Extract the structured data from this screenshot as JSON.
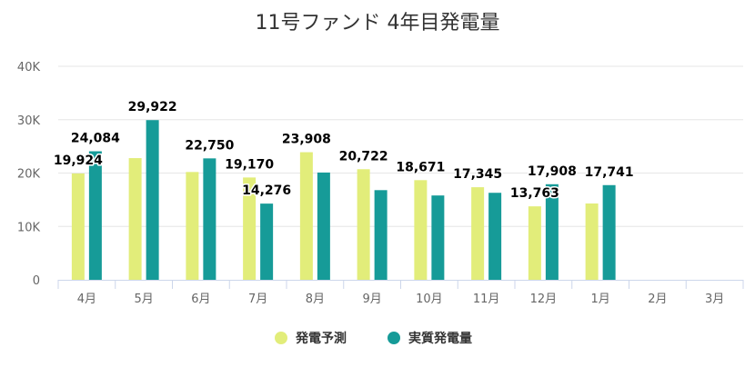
{
  "chart_data": {
    "type": "bar",
    "title": "11号ファンド 4年目発電量",
    "categories": [
      "4月",
      "5月",
      "6月",
      "7月",
      "8月",
      "9月",
      "10月",
      "11月",
      "12月",
      "1月",
      "2月",
      "3月"
    ],
    "series": [
      {
        "name": "発電予測",
        "color": "#e2ed7a",
        "values": [
          19924,
          22800,
          20200,
          19170,
          23908,
          20722,
          18671,
          17345,
          13763,
          14300,
          null,
          null
        ],
        "labels": [
          "19,924",
          "",
          "",
          "19,170",
          "23,908",
          "20,722",
          "18,671",
          "17,345",
          "13,763",
          "",
          "",
          ""
        ]
      },
      {
        "name": "実質発電量",
        "color": "#169b98",
        "values": [
          24084,
          29922,
          22750,
          14276,
          20100,
          16800,
          15800,
          16300,
          17908,
          17741,
          null,
          null
        ],
        "labels": [
          "24,084",
          "29,922",
          "22,750",
          "14,276",
          "",
          "",
          "",
          "",
          "17,908",
          "17,741",
          "",
          ""
        ]
      }
    ],
    "yticks": [
      {
        "value": 0,
        "label": "0"
      },
      {
        "value": 10000,
        "label": "10K"
      },
      {
        "value": 20000,
        "label": "20K"
      },
      {
        "value": 30000,
        "label": "30K"
      },
      {
        "value": 40000,
        "label": "40K"
      }
    ],
    "ylim": [
      0,
      40000
    ],
    "grid": true,
    "legend_position": "bottom-center"
  }
}
